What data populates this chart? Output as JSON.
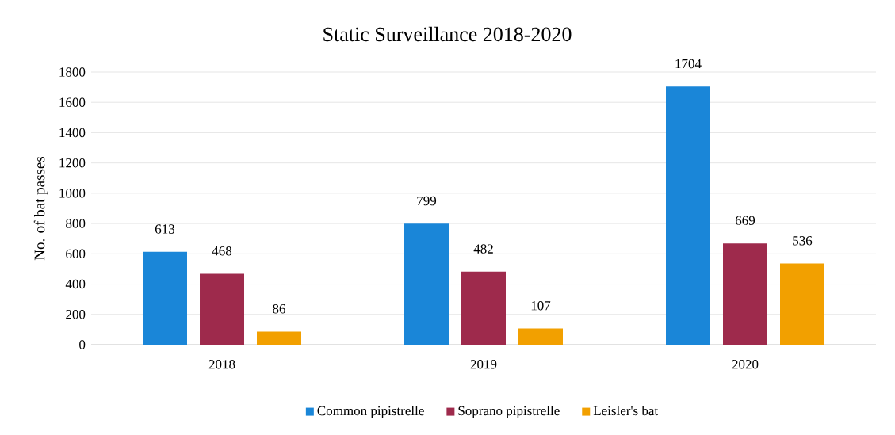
{
  "chart_data": {
    "type": "bar",
    "title": "Static Surveillance 2018-2020",
    "ylabel": "No. of bat passes",
    "categories": [
      "2018",
      "2019",
      "2020"
    ],
    "series": [
      {
        "name": "Common pipistrelle",
        "color": "#1a86d8",
        "values": [
          613,
          799,
          1704
        ]
      },
      {
        "name": "Soprano pipistrelle",
        "color": "#9e2a4c",
        "values": [
          468,
          482,
          669
        ]
      },
      {
        "name": "Leisler's bat",
        "color": "#f2a000",
        "values": [
          86,
          107,
          536
        ]
      }
    ],
    "ylim": [
      0,
      1800
    ],
    "yticks": [
      0,
      200,
      400,
      600,
      800,
      1000,
      1200,
      1400,
      1600,
      1800
    ],
    "grid": "y",
    "legend": "bottom",
    "data_labels": true
  }
}
